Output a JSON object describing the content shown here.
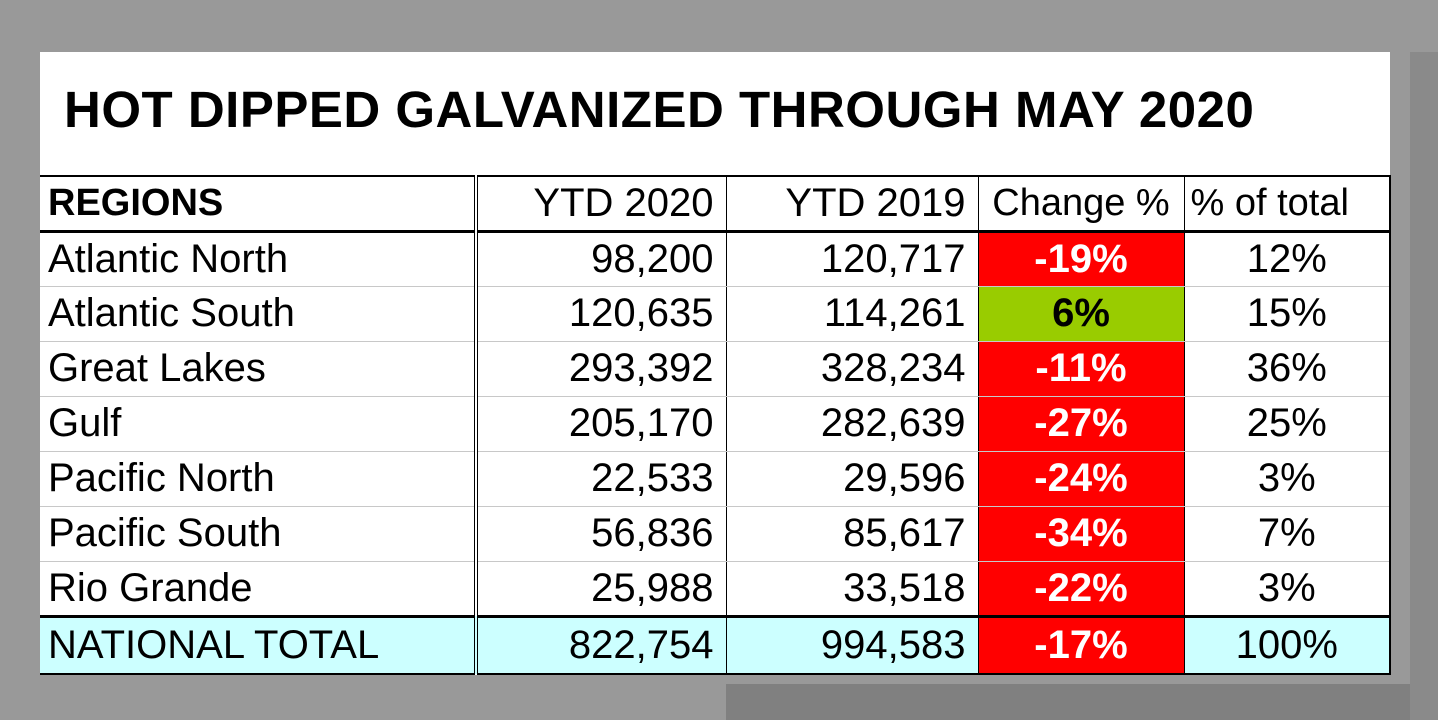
{
  "title": "HOT DIPPED GALVANIZED THROUGH MAY 2020",
  "colors": {
    "negative": "#ff0000",
    "positive": "#99cc00",
    "total_bg": "#ccffff"
  },
  "headers": [
    "REGIONS",
    "YTD 2020",
    "YTD 2019",
    "Change %",
    "% of total"
  ],
  "rows": [
    {
      "region": "Atlantic North",
      "ytd2020": "98,200",
      "ytd2019": "120,717",
      "change": "-19%",
      "share": "12%",
      "trend": "negative"
    },
    {
      "region": "Atlantic South",
      "ytd2020": "120,635",
      "ytd2019": "114,261",
      "change": "6%",
      "share": "15%",
      "trend": "positive"
    },
    {
      "region": "Great Lakes",
      "ytd2020": "293,392",
      "ytd2019": "328,234",
      "change": "-11%",
      "share": "36%",
      "trend": "negative"
    },
    {
      "region": "Gulf",
      "ytd2020": "205,170",
      "ytd2019": "282,639",
      "change": "-27%",
      "share": "25%",
      "trend": "negative"
    },
    {
      "region": "Pacific North",
      "ytd2020": "22,533",
      "ytd2019": "29,596",
      "change": "-24%",
      "share": "3%",
      "trend": "negative"
    },
    {
      "region": "Pacific South",
      "ytd2020": "56,836",
      "ytd2019": "85,617",
      "change": "-34%",
      "share": "7%",
      "trend": "negative"
    },
    {
      "region": "Rio Grande",
      "ytd2020": "25,988",
      "ytd2019": "33,518",
      "change": "-22%",
      "share": "3%",
      "trend": "negative"
    }
  ],
  "total": {
    "region": "NATIONAL TOTAL",
    "ytd2020": "822,754",
    "ytd2019": "994,583",
    "change": "-17%",
    "share": "100%",
    "trend": "negative"
  }
}
